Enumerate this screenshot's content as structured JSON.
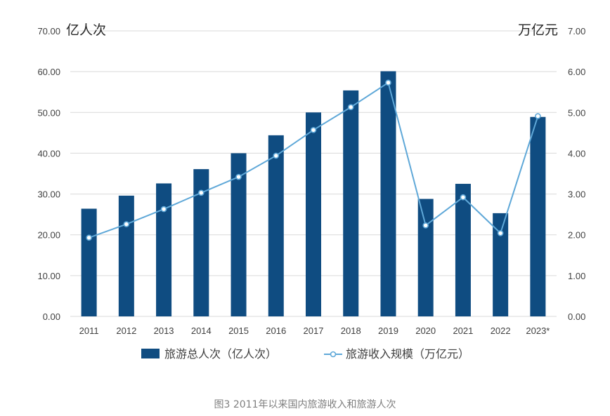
{
  "chart_data": {
    "type": "bar",
    "categories": [
      "2011",
      "2012",
      "2013",
      "2014",
      "2015",
      "2016",
      "2017",
      "2018",
      "2019",
      "2020",
      "2021",
      "2022",
      "2023*"
    ],
    "series": [
      {
        "name": "旅游总人次（亿人次）",
        "type": "bar",
        "axis": "left",
        "values": [
          26.4,
          29.6,
          32.6,
          36.1,
          40.0,
          44.4,
          50.0,
          55.4,
          60.1,
          28.8,
          32.5,
          25.3,
          48.9
        ]
      },
      {
        "name": "旅游收入规模（万亿元）",
        "type": "line",
        "axis": "right",
        "values": [
          1.93,
          2.26,
          2.63,
          3.03,
          3.42,
          3.94,
          4.57,
          5.13,
          5.73,
          2.23,
          2.92,
          2.04,
          4.91
        ]
      }
    ],
    "left_axis": {
      "unit": "亿人次",
      "ylim": [
        0,
        70
      ],
      "ticks": [
        "0.00",
        "10.00",
        "20.00",
        "30.00",
        "40.00",
        "50.00",
        "60.00",
        "70.00"
      ]
    },
    "right_axis": {
      "unit": "万亿元",
      "ylim": [
        0,
        7
      ],
      "ticks": [
        "0.00",
        "1.00",
        "2.00",
        "3.00",
        "4.00",
        "5.00",
        "6.00",
        "7.00"
      ]
    },
    "grid": true,
    "legend_position": "bottom",
    "caption": "图3 2011年以来国内旅游收入和旅游人次",
    "colors": {
      "bar": "#0f4c81",
      "line": "#5fa8d8",
      "grid": "#d9d9d9",
      "text": "#404040"
    }
  }
}
